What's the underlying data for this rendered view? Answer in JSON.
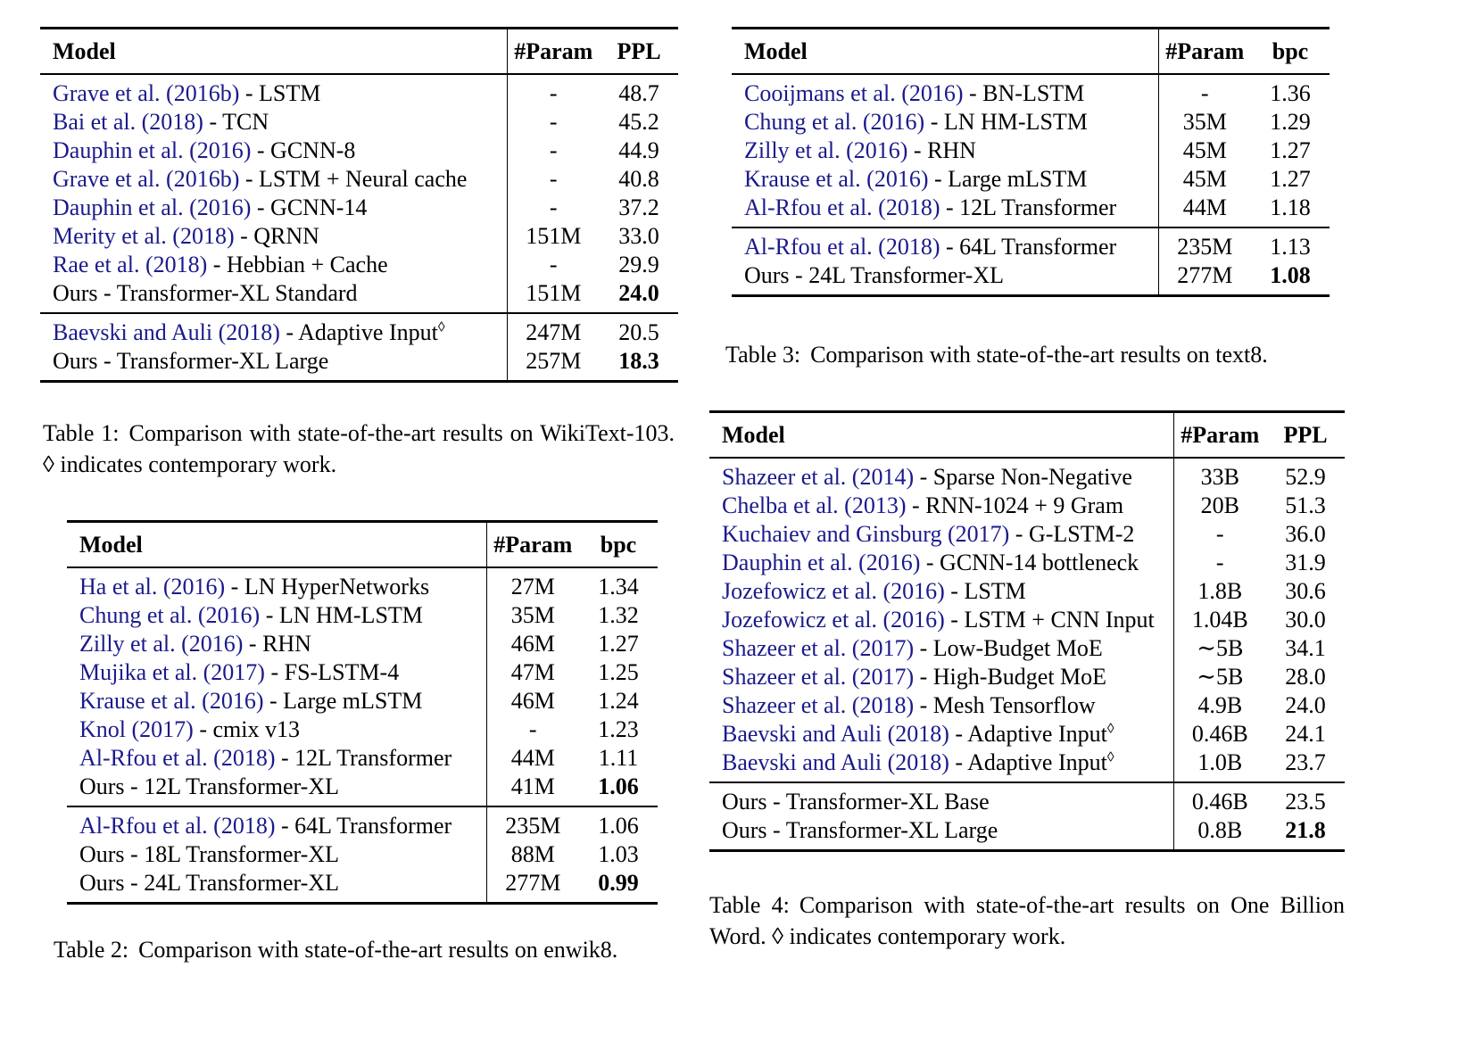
{
  "colors": {
    "citation": "#1a1a8c",
    "text": "#000000",
    "background": "#ffffff"
  },
  "tables": [
    {
      "columns": [
        "Model",
        "#Param",
        "PPL"
      ],
      "sections": [
        {
          "rows": [
            {
              "cite": "Grave et al. (2016b)",
              "text": " - LSTM",
              "param": "-",
              "value": "48.7"
            },
            {
              "cite": "Bai et al. (2018)",
              "text": " - TCN",
              "param": "-",
              "value": "45.2"
            },
            {
              "cite": "Dauphin et al. (2016)",
              "text": " - GCNN-8",
              "param": "-",
              "value": "44.9"
            },
            {
              "cite": "Grave et al. (2016b)",
              "text": " - LSTM + Neural cache",
              "param": "-",
              "value": "40.8"
            },
            {
              "cite": "Dauphin et al. (2016)",
              "text": " - GCNN-14",
              "param": "-",
              "value": "37.2"
            },
            {
              "cite": "Merity et al. (2018)",
              "text": " - QRNN",
              "param": "151M",
              "value": "33.0"
            },
            {
              "cite": "Rae et al. (2018)",
              "text": " - Hebbian + Cache",
              "param": "-",
              "value": "29.9"
            },
            {
              "cite": "",
              "text": "Ours - Transformer-XL Standard",
              "param": "151M",
              "value": "24.0",
              "bold": true
            }
          ]
        },
        {
          "rows": [
            {
              "cite": "Baevski and Auli (2018)",
              "text": " - Adaptive Input",
              "sup": "◊",
              "param": "247M",
              "value": "20.5"
            },
            {
              "cite": "",
              "text": "Ours - Transformer-XL Large",
              "param": "257M",
              "value": "18.3",
              "bold": true
            }
          ]
        }
      ],
      "caption": {
        "label": "Table 1:",
        "text": "Comparison with state-of-the-art results on WikiText-103. ◊ indicates contemporary work."
      }
    },
    {
      "columns": [
        "Model",
        "#Param",
        "bpc"
      ],
      "sections": [
        {
          "rows": [
            {
              "cite": "Ha et al. (2016)",
              "text": " - LN HyperNetworks",
              "param": "27M",
              "value": "1.34"
            },
            {
              "cite": "Chung et al. (2016)",
              "text": " - LN HM-LSTM",
              "param": "35M",
              "value": "1.32"
            },
            {
              "cite": "Zilly et al. (2016)",
              "text": " - RHN",
              "param": "46M",
              "value": "1.27"
            },
            {
              "cite": "Mujika et al. (2017)",
              "text": " - FS-LSTM-4",
              "param": "47M",
              "value": "1.25"
            },
            {
              "cite": "Krause et al. (2016)",
              "text": " - Large mLSTM",
              "param": "46M",
              "value": "1.24"
            },
            {
              "cite": "Knol (2017)",
              "text": " - cmix v13",
              "param": "-",
              "value": "1.23"
            },
            {
              "cite": "Al-Rfou et al. (2018)",
              "text": " - 12L Transformer",
              "param": "44M",
              "value": "1.11"
            },
            {
              "cite": "",
              "text": "Ours - 12L Transformer-XL",
              "param": "41M",
              "value": "1.06",
              "bold": true
            }
          ]
        },
        {
          "rows": [
            {
              "cite": "Al-Rfou et al. (2018)",
              "text": " - 64L Transformer",
              "param": "235M",
              "value": "1.06"
            },
            {
              "cite": "",
              "text": "Ours - 18L Transformer-XL",
              "param": "88M",
              "value": "1.03"
            },
            {
              "cite": "",
              "text": "Ours - 24L Transformer-XL",
              "param": "277M",
              "value": "0.99",
              "bold": true
            }
          ]
        }
      ],
      "caption": {
        "label": "Table 2:",
        "text": "Comparison with state-of-the-art results on enwik8."
      }
    },
    {
      "columns": [
        "Model",
        "#Param",
        "bpc"
      ],
      "sections": [
        {
          "rows": [
            {
              "cite": "Cooijmans et al. (2016)",
              "text": " - BN-LSTM",
              "param": "-",
              "value": "1.36"
            },
            {
              "cite": "Chung et al. (2016)",
              "text": " - LN HM-LSTM",
              "param": "35M",
              "value": "1.29"
            },
            {
              "cite": "Zilly et al. (2016)",
              "text": " - RHN",
              "param": "45M",
              "value": "1.27"
            },
            {
              "cite": "Krause et al. (2016)",
              "text": " - Large mLSTM",
              "param": "45M",
              "value": "1.27"
            },
            {
              "cite": "Al-Rfou et al. (2018)",
              "text": " - 12L Transformer",
              "param": "44M",
              "value": "1.18"
            }
          ]
        },
        {
          "rows": [
            {
              "cite": "Al-Rfou et al. (2018)",
              "text": " - 64L Transformer",
              "param": "235M",
              "value": "1.13"
            },
            {
              "cite": "",
              "text": "Ours - 24L Transformer-XL",
              "param": "277M",
              "value": "1.08",
              "bold": true
            }
          ]
        }
      ],
      "caption": {
        "label": "Table 3:",
        "text": "Comparison with state-of-the-art results on text8."
      }
    },
    {
      "columns": [
        "Model",
        "#Param",
        "PPL"
      ],
      "sections": [
        {
          "rows": [
            {
              "cite": "Shazeer et al. (2014)",
              "text": " - Sparse Non-Negative",
              "param": "33B",
              "value": "52.9"
            },
            {
              "cite": "Chelba et al. (2013)",
              "text": " - RNN-1024 + 9 Gram",
              "param": "20B",
              "value": "51.3"
            },
            {
              "cite": "Kuchaiev and Ginsburg (2017)",
              "text": " - G-LSTM-2",
              "param": "-",
              "value": "36.0"
            },
            {
              "cite": "Dauphin et al. (2016)",
              "text": " - GCNN-14 bottleneck",
              "param": "-",
              "value": "31.9"
            },
            {
              "cite": "Jozefowicz et al. (2016)",
              "text": " - LSTM",
              "param": "1.8B",
              "value": "30.6"
            },
            {
              "cite": "Jozefowicz et al. (2016)",
              "text": " - LSTM + CNN Input",
              "param": "1.04B",
              "value": "30.0"
            },
            {
              "cite": "Shazeer et al. (2017)",
              "text": " - Low-Budget MoE",
              "param": "∼5B",
              "value": "34.1"
            },
            {
              "cite": "Shazeer et al. (2017)",
              "text": " - High-Budget MoE",
              "param": "∼5B",
              "value": "28.0"
            },
            {
              "cite": "Shazeer et al. (2018)",
              "text": " - Mesh Tensorflow",
              "param": "4.9B",
              "value": "24.0"
            },
            {
              "cite": "Baevski and Auli (2018)",
              "text": " - Adaptive Input",
              "sup": "◊",
              "param": "0.46B",
              "value": "24.1"
            },
            {
              "cite": "Baevski and Auli (2018)",
              "text": " - Adaptive Input",
              "sup": "◊",
              "param": "1.0B",
              "value": "23.7"
            }
          ]
        },
        {
          "rows": [
            {
              "cite": "",
              "text": "Ours - Transformer-XL Base",
              "param": "0.46B",
              "value": "23.5"
            },
            {
              "cite": "",
              "text": "Ours - Transformer-XL Large",
              "param": "0.8B",
              "value": "21.8",
              "bold": true
            }
          ]
        }
      ],
      "caption": {
        "label": "Table 4:",
        "text": "Comparison with state-of-the-art results on One Billion Word. ◊ indicates contemporary work."
      }
    }
  ]
}
